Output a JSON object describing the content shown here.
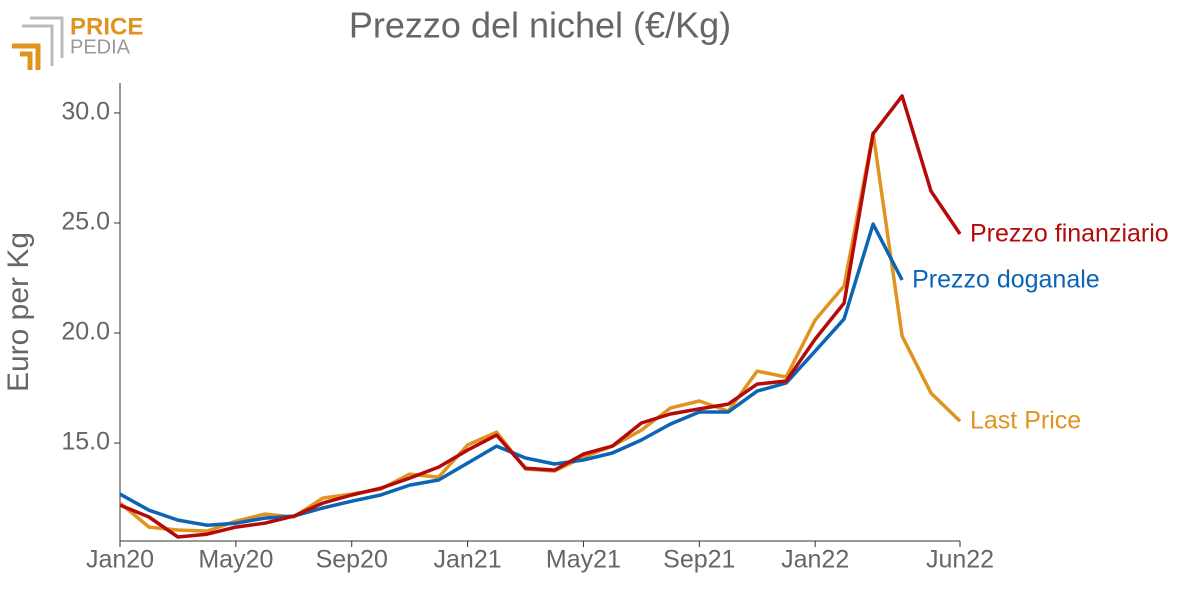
{
  "logo": {
    "line1": "PRICE",
    "line2": "PEDIA"
  },
  "chart_data": {
    "type": "line",
    "title": "Prezzo del nichel (€/Kg)",
    "y_label": "Euro per Kg",
    "x": [
      "2020-01",
      "2020-02",
      "2020-03",
      "2020-04",
      "2020-05",
      "2020-06",
      "2020-07",
      "2020-08",
      "2020-09",
      "2020-10",
      "2020-11",
      "2020-12",
      "2021-01",
      "2021-02",
      "2021-03",
      "2021-04",
      "2021-05",
      "2021-06",
      "2021-07",
      "2021-08",
      "2021-09",
      "2021-10",
      "2021-11",
      "2021-12",
      "2022-01",
      "2022-02",
      "2022-03",
      "2022-04",
      "2022-05",
      "2022-06"
    ],
    "xlim": [
      "2020-01",
      "2022-06"
    ],
    "xticks": [
      {
        "value": "2020-01",
        "label": "Jan20"
      },
      {
        "value": "2020-05",
        "label": "May20"
      },
      {
        "value": "2020-09",
        "label": "Sep20"
      },
      {
        "value": "2021-01",
        "label": "Jan21"
      },
      {
        "value": "2021-05",
        "label": "May21"
      },
      {
        "value": "2021-09",
        "label": "Sep21"
      },
      {
        "value": "2022-01",
        "label": "Jan22"
      },
      {
        "value": "2022-06",
        "label": "Jun22"
      }
    ],
    "ylim": [
      10.55,
      31.36
    ],
    "yticks": [
      {
        "value": 15,
        "label": "15.0"
      },
      {
        "value": 20,
        "label": "20.0"
      },
      {
        "value": 25,
        "label": "25.0"
      },
      {
        "value": 30,
        "label": "30.0"
      }
    ],
    "series": [
      {
        "name": "Last Price",
        "color": "#e0941f",
        "values": [
          12.27,
          11.18,
          11.05,
          11.0,
          11.45,
          11.77,
          11.64,
          12.5,
          12.68,
          12.91,
          13.59,
          13.45,
          14.91,
          15.5,
          13.82,
          13.73,
          14.36,
          14.86,
          15.59,
          16.59,
          16.91,
          16.45,
          18.27,
          18.0,
          20.59,
          22.14,
          29.09,
          19.86,
          17.27,
          16.0
        ]
      },
      {
        "name": "Prezzo doganale",
        "color": "#0c64b4",
        "values": [
          12.68,
          11.95,
          11.5,
          11.27,
          11.36,
          11.59,
          11.68,
          12.05,
          12.36,
          12.64,
          13.09,
          13.32,
          14.09,
          14.86,
          14.32,
          14.05,
          14.23,
          14.55,
          15.14,
          15.86,
          16.41,
          16.41,
          17.36,
          17.73,
          19.18,
          20.64,
          24.95,
          22.41,
          null,
          null
        ]
      },
      {
        "name": "Prezzo finanziario",
        "color": "#b40a0a",
        "values": [
          12.18,
          11.64,
          10.73,
          10.86,
          11.18,
          11.36,
          11.68,
          12.27,
          12.64,
          12.95,
          13.41,
          13.91,
          14.68,
          15.36,
          13.86,
          13.77,
          14.5,
          14.86,
          15.91,
          16.32,
          16.55,
          16.77,
          17.68,
          17.82,
          19.73,
          21.36,
          29.05,
          30.77,
          26.45,
          24.5
        ]
      }
    ]
  }
}
